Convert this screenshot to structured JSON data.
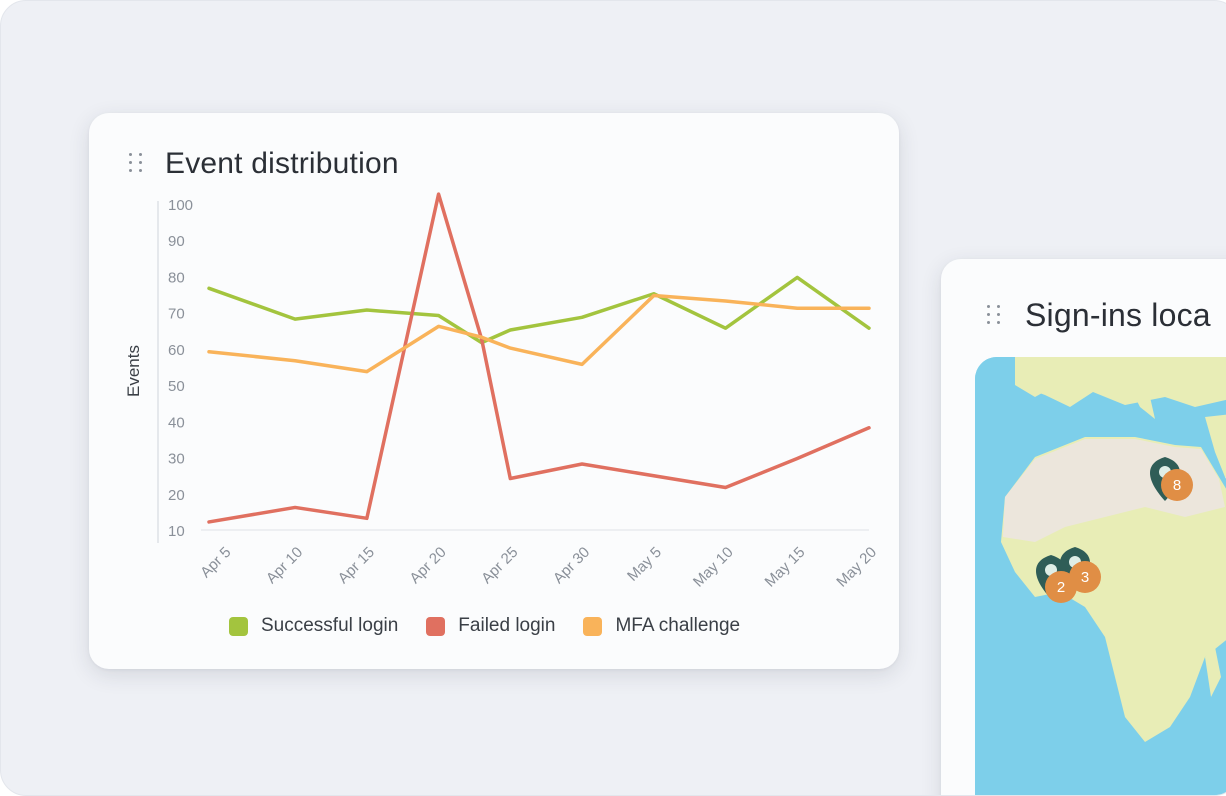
{
  "event_card": {
    "title": "Event distribution",
    "legend": [
      {
        "label": "Successful login",
        "color": "#a3c43e"
      },
      {
        "label": "Failed login",
        "color": "#e07060"
      },
      {
        "label": "MFA challenge",
        "color": "#f9b35a"
      }
    ]
  },
  "signins_card": {
    "title": "Sign-ins loca",
    "pins": [
      {
        "count": "8"
      },
      {
        "count": "3"
      },
      {
        "count": "2"
      }
    ]
  },
  "chart_data": {
    "type": "line",
    "ylabel": "Events",
    "xlabel": "",
    "ylim": [
      10,
      100
    ],
    "yticks": [
      100,
      90,
      80,
      70,
      60,
      50,
      40,
      30,
      20,
      10
    ],
    "xtick_labels": [
      "Apr 5",
      "Apr 10",
      "Apr 15",
      "Apr 20",
      "Apr 25",
      "Apr 30",
      "May 5",
      "May 10",
      "May 15",
      "May 20"
    ],
    "x": [
      "Apr 3",
      "Apr 9",
      "Apr 14",
      "Apr 19",
      "Apr 22",
      "Apr 24",
      "Apr 29",
      "May 4",
      "May 9",
      "May 14",
      "May 19"
    ],
    "series": [
      {
        "name": "Successful login",
        "color": "#a3c43e",
        "values": [
          77,
          68.5,
          71,
          69.5,
          62,
          65.5,
          69,
          75.5,
          66,
          80,
          66
        ]
      },
      {
        "name": "Failed login",
        "color": "#e07060",
        "values": [
          12.5,
          16.5,
          13.5,
          103,
          63,
          24.5,
          28.5,
          null,
          22,
          30,
          38.5
        ]
      },
      {
        "name": "MFA challenge",
        "color": "#f9b35a",
        "values": [
          59.5,
          57,
          54,
          66.5,
          63.5,
          60.5,
          56,
          75,
          73.5,
          71.5,
          71.5
        ]
      }
    ]
  },
  "colors": {
    "background": "#eef0f5",
    "card": "#fbfcfd",
    "ocean": "#7dcfea",
    "land": "#e8edb6",
    "desert": "#ece6dc",
    "pin_dark": "#2f5d57",
    "pin_count": "#e08e45"
  }
}
